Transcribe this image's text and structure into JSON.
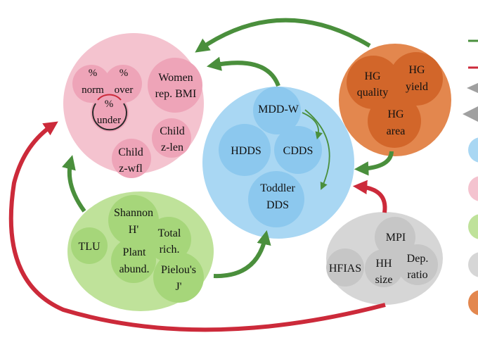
{
  "colors": {
    "green_arrow": "#4a8f3c",
    "red_arrow": "#cc2a3a",
    "grey_arrow": "#a0a0a0",
    "nutrition_outer": "#f4c3cf",
    "nutrition_inner": "#eea4b8",
    "diet_outer": "#a9d7f3",
    "diet_inner": "#8cc8ee",
    "agro_outer": "#bfe29a",
    "agro_inner": "#a6d67a",
    "socio_outer": "#d6d6d6",
    "socio_inner": "#c6c6c6",
    "homegarden_outer": "#e3874e",
    "homegarden_inner": "#d2662a"
  },
  "clusters": {
    "nutrition": {
      "norm_line1": "%",
      "norm_line2": "norm",
      "over_line1": "%",
      "over_line2": "over",
      "under_line1": "%",
      "under_line2": "under",
      "women_line1": "Women",
      "women_line2": "rep. BMI",
      "childlen_line1": "Child",
      "childlen_line2": "z-len",
      "childwfl_line1": "Child",
      "childwfl_line2": "z-wfl"
    },
    "diet": {
      "mddw": "MDD-W",
      "hdds": "HDDS",
      "cdds": "CDDS",
      "toddler_line1": "Toddler",
      "toddler_line2": "DDS"
    },
    "agro": {
      "tlu": "TLU",
      "shannon_line1": "Shannon",
      "shannon_line2": "H'",
      "richness_line1": "Total",
      "richness_line2": "rich.",
      "abund_line1": "Plant",
      "abund_line2": "abund.",
      "pielou_line1": "Pielou's",
      "pielou_line2": "J'"
    },
    "socio": {
      "hfias": "HFIAS",
      "mpi": "MPI",
      "hhsize_line1": "HH",
      "hhsize_line2": "size",
      "depratio_line1": "Dep.",
      "depratio_line2": "ratio"
    },
    "homegarden": {
      "quality_line1": "HG",
      "quality_line2": "quality",
      "yield_line1": "HG",
      "yield_line2": "yield",
      "area_line1": "HG",
      "area_line2": "area"
    }
  },
  "legend": {
    "swatch_icons": [
      "green-line",
      "red-line",
      "grey-triangle",
      "grey-triangle",
      "blue-circle",
      "pink-circle",
      "green-circle",
      "grey-circle",
      "orange-circle"
    ]
  }
}
